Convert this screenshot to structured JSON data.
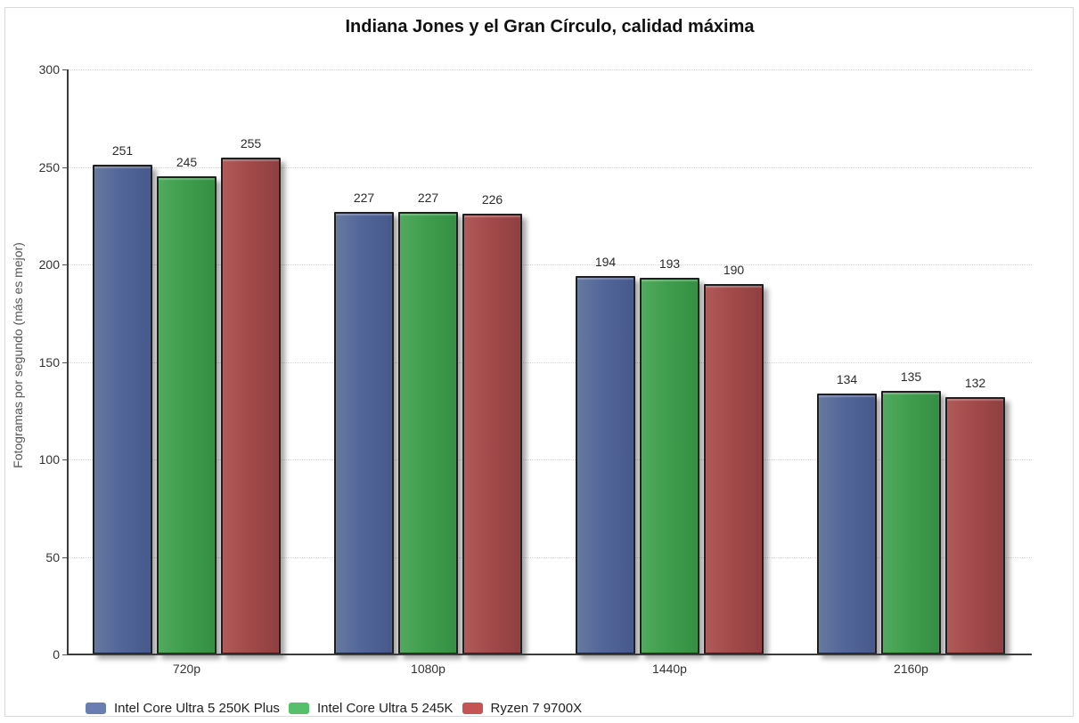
{
  "page": {
    "background_color": "#ffffff",
    "container_border_color": "#d9d9d9"
  },
  "chart_data": {
    "type": "bar",
    "title": "Indiana Jones y el Gran Círculo, calidad máxima",
    "ylabel": "Fotogramas por segundo (más es mejor)",
    "xlabel": "",
    "ylim": [
      0,
      300
    ],
    "ytick_step": 50,
    "ytick_labels": [
      "0",
      "50",
      "100",
      "150",
      "200",
      "250",
      "300"
    ],
    "grid": true,
    "gridline_style": "dotted",
    "legend_position": "bottom-left",
    "value_labels": true,
    "categories": [
      "720p",
      "1080p",
      "1440p",
      "2160p"
    ],
    "series": [
      {
        "name": "Intel Core Ultra 5 250K Plus",
        "values": [
          251,
          227,
          194,
          134
        ],
        "bar_color": "#52669a",
        "bar_color_light": "#67799f",
        "bar_color_dark": "#47598b",
        "legend_color": "#6a7db1"
      },
      {
        "name": "Intel Core Ultra 5 245K",
        "values": [
          245,
          227,
          193,
          135
        ],
        "bar_color": "#3f9e4e",
        "bar_color_light": "#52a95e",
        "bar_color_dark": "#358f43",
        "legend_color": "#55c069"
      },
      {
        "name": "Ryzen 7 9700X",
        "values": [
          255,
          226,
          190,
          132
        ],
        "bar_color": "#a34a4b",
        "bar_color_light": "#b05a5a",
        "bar_color_dark": "#8f3f40",
        "legend_color": "#c55555"
      }
    ],
    "bar_outline_color": "#1f1f1f",
    "axis_color": "#3c3c3c",
    "gridline_color": "#d6d6d6",
    "tick_text_color": "#333333",
    "value_text_color": "#2b2b2b"
  }
}
